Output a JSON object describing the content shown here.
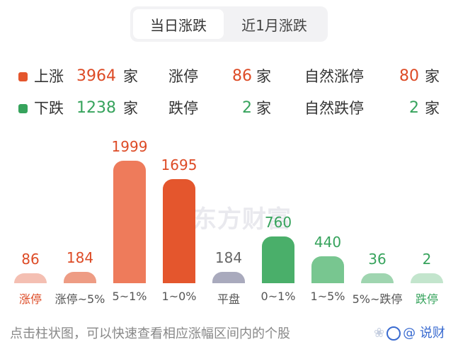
{
  "tabs": [
    {
      "label": "当日涨跌",
      "active": true
    },
    {
      "label": "近1月涨跌",
      "active": false
    }
  ],
  "stats": {
    "up": {
      "label": "上涨",
      "value": "3964",
      "unit": "家",
      "color": "#dd4b26"
    },
    "down": {
      "label": "下跌",
      "value": "1238",
      "unit": "家",
      "color": "#36a35c"
    },
    "limit_up": {
      "label": "涨停",
      "value": "86",
      "unit": "家"
    },
    "limit_down": {
      "label": "跌停",
      "value": "2",
      "unit": "家"
    },
    "natural_limit_up": {
      "label": "自然涨停",
      "value": "80",
      "unit": "家"
    },
    "natural_limit_down": {
      "label": "自然跌停",
      "value": "2",
      "unit": "家"
    }
  },
  "watermark": "东方财富",
  "chart_data": {
    "type": "bar",
    "title": "",
    "xlabel": "",
    "ylabel": "",
    "grid": false,
    "legend": false,
    "categories": [
      "涨停",
      "涨停~5%",
      "5~1%",
      "1~0%",
      "平盘",
      "0~1%",
      "1~5%",
      "5%~跌停",
      "跌停"
    ],
    "values": [
      86,
      184,
      1999,
      1695,
      184,
      760,
      440,
      36,
      2
    ],
    "colors": [
      "#f4bfb2",
      "#ee9c84",
      "#ee7b5b",
      "#e4562d",
      "#a9aabd",
      "#4aaf6a",
      "#78c690",
      "#9fd5b0",
      "#c3e5cd"
    ],
    "value_colors": [
      "#dd4b26",
      "#dd4b26",
      "#dd4b26",
      "#dd4b26",
      "#666666",
      "#36a35c",
      "#36a35c",
      "#36a35c",
      "#36a35c"
    ]
  },
  "footer": {
    "hint": "点击柱状图，可以快速查看相应涨幅区间内的个股",
    "source_watermark": "@ 说财"
  }
}
